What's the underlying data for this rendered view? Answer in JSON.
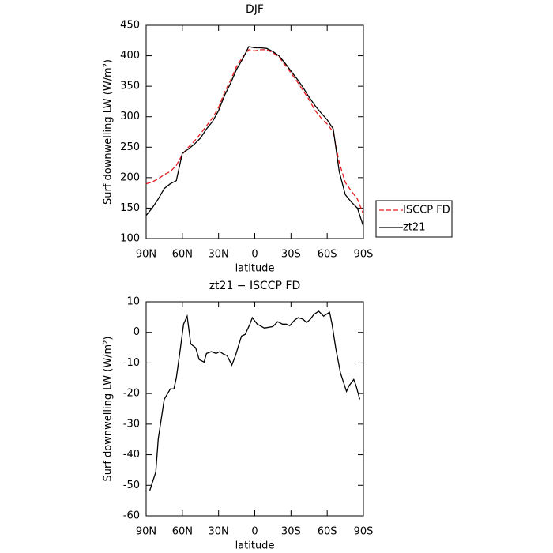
{
  "chart_data": [
    {
      "type": "line",
      "title": "DJF",
      "xlabel": "latitude",
      "ylabel": "Surf downwelling LW (W/m²)",
      "x": [
        90,
        85,
        80,
        75,
        70,
        65,
        60,
        55,
        50,
        45,
        40,
        35,
        30,
        25,
        20,
        15,
        10,
        5,
        0,
        -5,
        -10,
        -15,
        -20,
        -25,
        -30,
        -35,
        -40,
        -45,
        -50,
        -55,
        -60,
        -65,
        -70,
        -75,
        -80,
        -85,
        -90
      ],
      "series": [
        {
          "name": "ISCCP FD",
          "color": "#e41a1c",
          "dashed": true,
          "values": [
            190,
            193,
            198,
            205,
            210,
            220,
            238,
            250,
            260,
            272,
            285,
            298,
            315,
            340,
            360,
            383,
            398,
            410,
            408,
            410,
            410,
            405,
            398,
            385,
            372,
            358,
            343,
            328,
            310,
            298,
            288,
            275,
            225,
            192,
            178,
            165,
            140
          ]
        },
        {
          "name": "zt21",
          "color": "#000000",
          "dashed": false,
          "values": [
            138,
            150,
            165,
            182,
            190,
            195,
            240,
            247,
            255,
            265,
            280,
            292,
            310,
            335,
            355,
            378,
            395,
            415,
            413,
            413,
            412,
            407,
            400,
            388,
            375,
            362,
            348,
            332,
            318,
            306,
            295,
            280,
            210,
            172,
            160,
            150,
            120
          ]
        }
      ],
      "xlim": [
        90,
        -90
      ],
      "xticks": [
        {
          "value": 90,
          "label": "90N"
        },
        {
          "value": 60,
          "label": "60N"
        },
        {
          "value": 30,
          "label": "30N"
        },
        0,
        {
          "value": -30,
          "label": "30S"
        },
        {
          "value": -60,
          "label": "60S"
        },
        {
          "value": -90,
          "label": "90S"
        }
      ],
      "ylim": [
        100,
        450
      ],
      "yticks": [
        100,
        150,
        200,
        250,
        300,
        350,
        400,
        450
      ],
      "legend": "right"
    },
    {
      "type": "line",
      "title": "zt21 − ISCCP FD",
      "xlabel": "latitude",
      "ylabel": "Surf downwelling LW (W/m²)",
      "x": [
        87,
        82,
        80,
        75,
        70,
        67,
        65,
        62,
        59,
        56,
        53,
        49,
        46,
        42,
        40,
        36,
        32,
        29,
        26,
        23,
        19,
        16,
        13,
        11,
        8,
        4,
        2,
        -2,
        -8,
        -15,
        -19,
        -23,
        -26,
        -29,
        -33,
        -36,
        -40,
        -43,
        -46,
        -49,
        -53,
        -57,
        -62,
        -64,
        -67,
        -71,
        -76,
        -78,
        -82,
        -84,
        -87
      ],
      "color": "#000000",
      "values": [
        -51.7,
        -45.7,
        -34.9,
        -21.9,
        -18.5,
        -18.5,
        -14.9,
        -6.3,
        2.7,
        5.3,
        -3.8,
        -5,
        -8.9,
        -9.7,
        -6.9,
        -6.3,
        -6.9,
        -6.3,
        -7.1,
        -7.6,
        -10.7,
        -7.6,
        -3.8,
        -1.2,
        -0.7,
        2.7,
        4.8,
        2.7,
        1.4,
        1.9,
        3.5,
        2.7,
        2.7,
        2.2,
        4,
        4.8,
        4.3,
        3.2,
        4.3,
        5.9,
        6.9,
        5.3,
        6.6,
        2.7,
        -5,
        -13.3,
        -19.3,
        -17.5,
        -15.4,
        -17.5,
        -21.9
      ],
      "xlim": [
        90,
        -90
      ],
      "xticks": [
        {
          "value": 90,
          "label": "90N"
        },
        {
          "value": 60,
          "label": "60N"
        },
        {
          "value": 30,
          "label": "30N"
        },
        0,
        {
          "value": -30,
          "label": "30S"
        },
        {
          "value": -60,
          "label": "60S"
        },
        {
          "value": -90,
          "label": "90S"
        }
      ],
      "ylim": [
        -60,
        10
      ],
      "yticks": [
        -60,
        -50,
        -40,
        -30,
        -20,
        -10,
        0,
        10
      ]
    }
  ]
}
